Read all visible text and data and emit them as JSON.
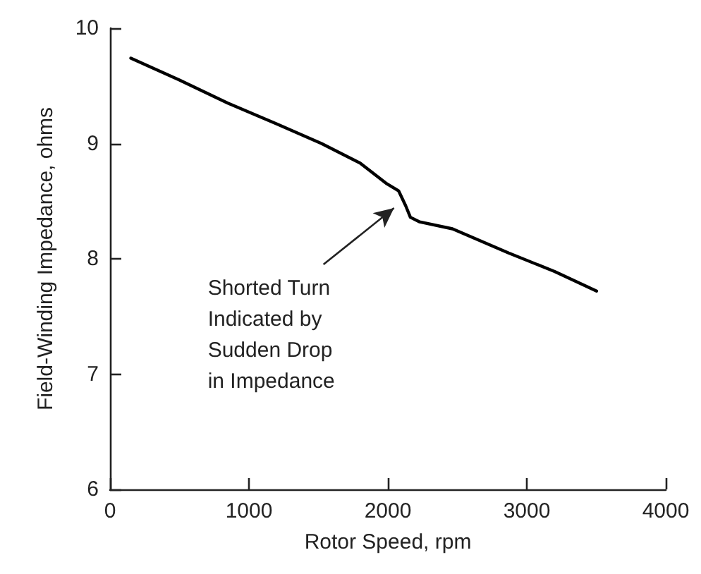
{
  "chart_data": {
    "type": "line",
    "xlabel": "Rotor Speed, rpm",
    "ylabel": "Field-Winding Impedance, ohms",
    "x": [
      150,
      500,
      848,
      1200,
      1522,
      1800,
      1993,
      2077,
      2128,
      2162,
      2229,
      2465,
      2869,
      3200,
      3502
    ],
    "series": [
      {
        "color": "#000000",
        "values": [
          9.74,
          9.55,
          9.35,
          9.17,
          9.0,
          8.83,
          8.65,
          8.59,
          8.46,
          8.36,
          8.32,
          8.26,
          8.05,
          7.89,
          7.72
        ]
      }
    ],
    "annotations": [
      "Shorted Turn\nIndicated by\nSudden Drop\nin Impedance"
    ],
    "xlim": [
      0,
      4000
    ],
    "xticks": [
      0,
      1000,
      2000,
      3000,
      4000
    ],
    "ylim": [
      6,
      10
    ],
    "yticks": [
      6,
      7,
      8,
      9,
      10
    ],
    "grid": false,
    "marker": "none",
    "line_style": "solid"
  }
}
